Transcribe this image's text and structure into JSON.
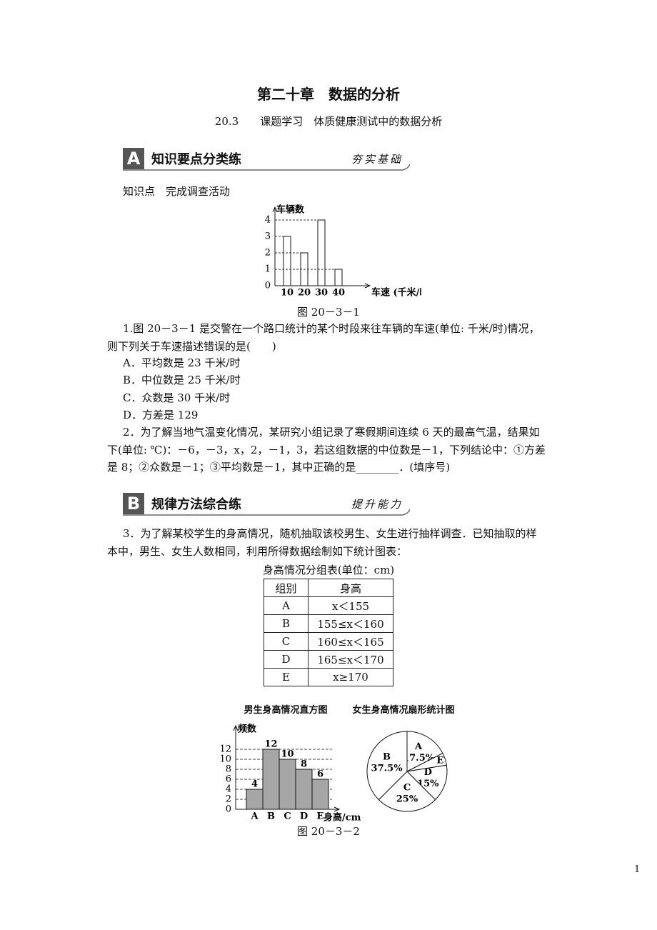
{
  "header": {
    "chapter": "第二十章　数据的分析",
    "section": "20.3　　课题学习　体质健康测试中的数据分析"
  },
  "section_a": {
    "letter": "A",
    "title": "知识要点分类练",
    "tag": "夯实基础"
  },
  "knowledge_point": "知识点　完成调查活动",
  "figure1_caption": "图 20－3－1",
  "q1": {
    "stem": [
      "1.图 20－3－1 是交警在一个路口统计的某个时段来往车辆的车速(单位: 千米/时)情况，",
      "则下列关于车速描述错误的是(　　)"
    ],
    "options": [
      "A．平均数是 23 千米/时",
      "B．中位数是 25 千米/时",
      "C．众数是 30 千米/时",
      "D．方差是 129"
    ]
  },
  "q2": {
    "stem": [
      "2．为了解当地气温变化情况，某研究小组记录了寒假期间连续 6 天的最高气温，结果如",
      "下(单位: ℃)：－6，－3，x，2，－1，3，若这组数据的中位数是－1，下列结论中：①方差",
      "是 8；②众数是－1；③平均数是－1，其中正确的是________．(填序号)"
    ]
  },
  "section_b": {
    "letter": "B",
    "title": "规律方法综合练",
    "tag": "提升能力"
  },
  "q3": {
    "stem": [
      "3．为了解某校学生的身高情况，随机抽取该校男生、女生进行抽样调查．已知抽取的样",
      "本中，男生、女生人数相同，利用所得数据绘制如下统计图表："
    ]
  },
  "table": {
    "caption": "身高情况分组表(单位：cm)",
    "header": [
      "组别",
      "身高"
    ],
    "rows": [
      [
        "A",
        "x＜155"
      ],
      [
        "B",
        "155≤x＜160"
      ],
      [
        "C",
        "160≤x＜165"
      ],
      [
        "D",
        "165≤x＜170"
      ],
      [
        "E",
        "x≥170"
      ]
    ]
  },
  "figure2_caption": "图 20－3－2",
  "page_number": "1",
  "chart_data": [
    {
      "type": "bar",
      "y_label": "车辆数",
      "x_label": "车速 (千米/时)",
      "categories": [
        "10",
        "20",
        "30",
        "40"
      ],
      "values": [
        3,
        2,
        4,
        1
      ],
      "color": "#ffffff",
      "ylim": [
        0,
        4
      ],
      "yticks": [
        0,
        1,
        2,
        3,
        4
      ]
    },
    {
      "type": "histogram",
      "title": "男生身高情况直方图",
      "y_label": "频数",
      "x_label": "身高/cm",
      "categories": [
        "A",
        "B",
        "C",
        "D",
        "E"
      ],
      "values": [
        4,
        12,
        10,
        8,
        6
      ],
      "color": "#a6a6a6",
      "ylim": [
        0,
        12
      ],
      "yticks": [
        0,
        2,
        4,
        6,
        8,
        10,
        12
      ],
      "grid": true
    },
    {
      "type": "pie",
      "title": "女生身高情况扇形统计图",
      "categories": [
        "A",
        "E",
        "D",
        "C",
        "B"
      ],
      "values": [
        17.5,
        5,
        15,
        25,
        37.5
      ],
      "value_labels": [
        "17.5%",
        null,
        "15%",
        "25%",
        "37.5%"
      ],
      "color": "#ffffff"
    }
  ]
}
